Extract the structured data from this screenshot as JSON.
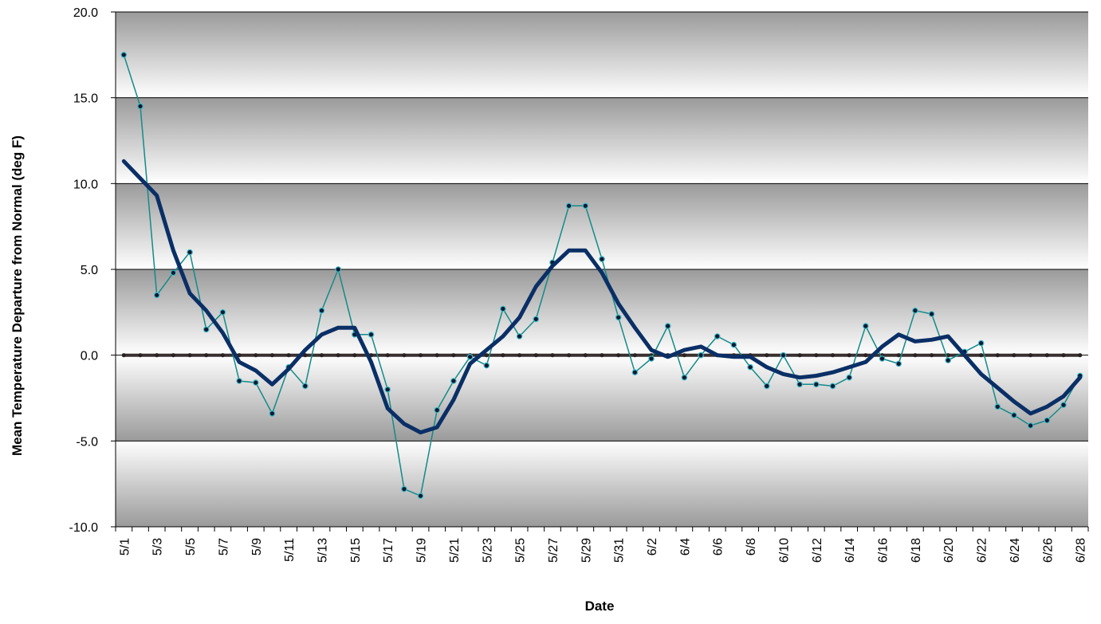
{
  "chart_data": {
    "type": "line",
    "title": "",
    "xlabel": "Date",
    "ylabel": "Mean Temperature Departure from Normal (deg F)",
    "ylim": [
      -10,
      20
    ],
    "y_ticks": [
      "20.0",
      "15.0",
      "10.0",
      "5.0",
      "0.0",
      "-5.0",
      "-10.0"
    ],
    "y_tick_values": [
      20,
      15,
      10,
      5,
      0,
      -5,
      -10
    ],
    "x": [
      "5/1",
      "5/2",
      "5/3",
      "5/4",
      "5/5",
      "5/6",
      "5/7",
      "5/8",
      "5/9",
      "5/10",
      "5/11",
      "5/12",
      "5/13",
      "5/14",
      "5/15",
      "5/16",
      "5/17",
      "5/18",
      "5/19",
      "5/20",
      "5/21",
      "5/22",
      "5/23",
      "5/24",
      "5/25",
      "5/26",
      "5/27",
      "5/28",
      "5/29",
      "5/30",
      "5/31",
      "6/1",
      "6/2",
      "6/3",
      "6/4",
      "6/5",
      "6/6",
      "6/7",
      "6/8",
      "6/9",
      "6/10",
      "6/11",
      "6/12",
      "6/13",
      "6/14",
      "6/15",
      "6/16",
      "6/17",
      "6/18",
      "6/19",
      "6/20",
      "6/21",
      "6/22",
      "6/23",
      "6/24",
      "6/25",
      "6/26",
      "6/27",
      "6/28"
    ],
    "x_tick_labels": [
      "5/1",
      "5/3",
      "5/5",
      "5/7",
      "5/9",
      "5/11",
      "5/13",
      "5/15",
      "5/17",
      "5/19",
      "5/21",
      "5/23",
      "5/25",
      "5/27",
      "5/29",
      "5/31",
      "6/2",
      "6/4",
      "6/6",
      "6/8",
      "6/10",
      "6/12",
      "6/14",
      "6/16",
      "6/18",
      "6/20",
      "6/22",
      "6/24",
      "6/26",
      "6/28"
    ],
    "grid": true,
    "series": [
      {
        "role": "daily-departure",
        "values": [
          17.5,
          14.5,
          3.5,
          4.8,
          6.0,
          1.5,
          2.5,
          -1.5,
          -1.6,
          -3.4,
          -0.7,
          -1.8,
          2.6,
          5.0,
          1.2,
          1.2,
          -2.0,
          -7.8,
          -8.2,
          -3.2,
          -1.5,
          -0.1,
          -0.6,
          2.7,
          1.1,
          2.1,
          5.4,
          8.7,
          8.7,
          5.6,
          2.2,
          -1.0,
          -0.2,
          1.7,
          -1.3,
          0.0,
          1.1,
          0.6,
          -0.7,
          -1.8,
          0.0,
          -1.7,
          -1.7,
          -1.8,
          -1.3,
          1.7,
          -0.2,
          -0.5,
          2.6,
          2.4,
          -0.3,
          0.2,
          0.7,
          -3.0,
          -3.5,
          -4.1,
          -3.8,
          -2.9,
          -1.2
        ],
        "color": "#138a8a"
      },
      {
        "role": "moving-average",
        "values": [
          11.3,
          10.3,
          9.3,
          6.1,
          3.6,
          2.6,
          1.3,
          -0.4,
          -0.9,
          -1.7,
          -0.8,
          0.3,
          1.2,
          1.6,
          1.6,
          -0.4,
          -3.1,
          -4.0,
          -4.5,
          -4.2,
          -2.6,
          -0.5,
          0.3,
          1.1,
          2.2,
          4.0,
          5.2,
          6.1,
          6.1,
          4.8,
          3.0,
          1.6,
          0.3,
          -0.1,
          0.3,
          0.5,
          0.0,
          -0.1,
          -0.1,
          -0.7,
          -1.1,
          -1.3,
          -1.2,
          -1.0,
          -0.7,
          -0.4,
          0.5,
          1.2,
          0.8,
          0.9,
          1.1,
          0.0,
          -1.1,
          -1.9,
          -2.7,
          -3.4,
          -3.0,
          -2.4,
          -1.3
        ],
        "color": "#0a2f66"
      },
      {
        "role": "normal-baseline",
        "values": [
          0,
          0,
          0,
          0,
          0,
          0,
          0,
          0,
          0,
          0,
          0,
          0,
          0,
          0,
          0,
          0,
          0,
          0,
          0,
          0,
          0,
          0,
          0,
          0,
          0,
          0,
          0,
          0,
          0,
          0,
          0,
          0,
          0,
          0,
          0,
          0,
          0,
          0,
          0,
          0,
          0,
          0,
          0,
          0,
          0,
          0,
          0,
          0,
          0,
          0,
          0,
          0,
          0,
          0,
          0,
          0,
          0,
          0,
          0
        ],
        "color": "#3a3030"
      }
    ],
    "plot_background": {
      "gradient_bands": true,
      "dark": "#9a9a9a",
      "light": "#ffffff"
    }
  }
}
